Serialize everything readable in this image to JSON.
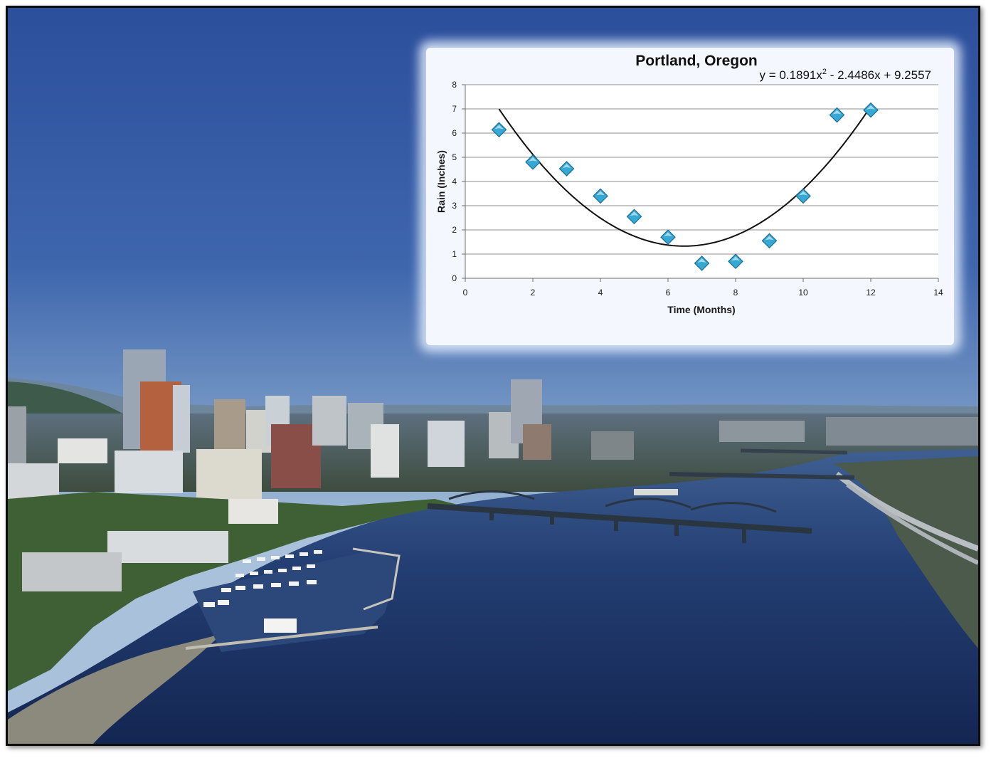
{
  "chart_data": {
    "type": "scatter",
    "title": "Portland, Oregon",
    "xlabel": "Time (Months)",
    "ylabel": "Rain (Inches)",
    "xlim": [
      0,
      14
    ],
    "ylim": [
      0,
      8
    ],
    "xticks": [
      0,
      2,
      4,
      6,
      8,
      10,
      12,
      14
    ],
    "yticks": [
      0,
      1,
      2,
      3,
      4,
      5,
      6,
      7,
      8
    ],
    "grid": "horizontal",
    "legend": "none",
    "marker": "diamond",
    "marker_color": "#35a8d4",
    "series": [
      {
        "x": [
          1,
          2,
          3,
          4,
          5,
          6,
          7,
          8,
          9,
          10,
          11,
          12
        ],
        "y": [
          6.14,
          4.8,
          4.53,
          3.4,
          2.55,
          1.7,
          0.62,
          0.7,
          1.55,
          3.4,
          6.75,
          6.95
        ]
      }
    ],
    "trendline": {
      "type": "polynomial",
      "order": 2,
      "coefficients": [
        0.1891,
        -2.4486,
        9.2557
      ],
      "x_range": [
        1,
        12
      ],
      "equation_label_base": "y = 0.1891x",
      "equation_label_exp": "2",
      "equation_label_rest": " - 2.4486x + 9.2557"
    }
  }
}
